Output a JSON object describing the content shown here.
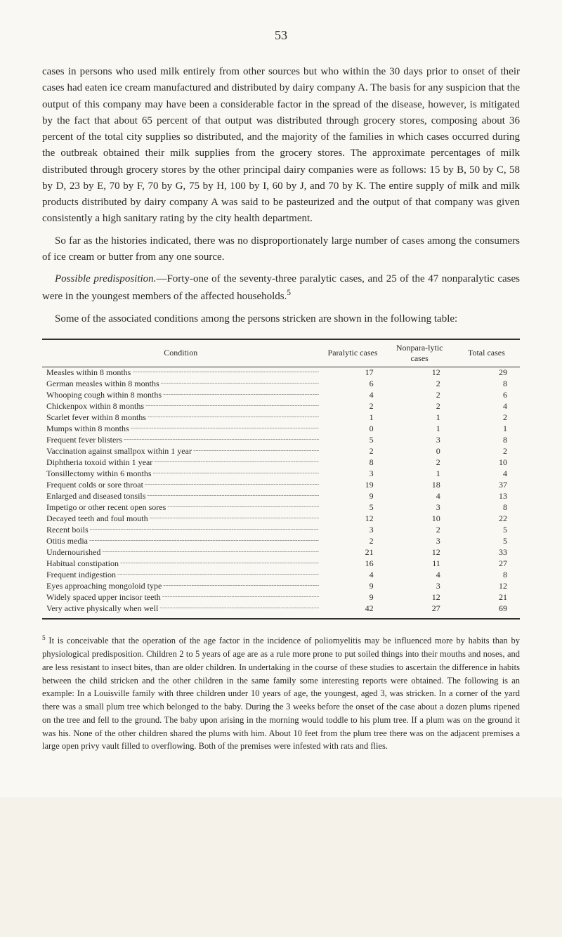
{
  "page_number": "53",
  "paragraphs": {
    "p1": "cases in persons who used milk entirely from other sources but who within the 30 days prior to onset of their cases had eaten ice cream manufactured and distributed by dairy company A. The basis for any suspicion that the output of this company may have been a considerable factor in the spread of the disease, however, is mitigated by the fact that about 65 percent of that output was distributed through grocery stores, composing about 36 percent of the total city supplies so distributed, and the majority of the families in which cases occurred during the outbreak obtained their milk supplies from the grocery stores. The approximate percentages of milk distributed through grocery stores by the other principal dairy companies were as follows: 15 by B, 50 by C, 58 by D, 23 by E, 70 by F, 70 by G, 75 by H, 100 by I, 60 by J, and 70 by K. The entire supply of milk and milk products distributed by dairy company A was said to be pasteurized and the output of that company was given consistently a high sanitary rating by the city health department.",
    "p2": "So far as the histories indicated, there was no disproportionately large number of cases among the consumers of ice cream or butter from any one source.",
    "p3_lead": "Possible predisposition.",
    "p3_rest": "—Forty-one of the seventy-three paralytic cases, and 25 of the 47 nonparalytic cases were in the youngest members of the affected households.",
    "p3_sup": "5",
    "p4": "Some of the associated conditions among the persons stricken are shown in the following table:"
  },
  "table": {
    "headers": {
      "condition": "Condition",
      "paralytic": "Paralytic cases",
      "nonparalytic": "Nonpara-lytic cases",
      "total": "Total cases"
    },
    "rows": [
      {
        "condition": "Measles within 8 months",
        "paralytic": "17",
        "nonparalytic": "12",
        "total": "29"
      },
      {
        "condition": "German measles within 8 months",
        "paralytic": "6",
        "nonparalytic": "2",
        "total": "8"
      },
      {
        "condition": "Whooping cough within 8 months",
        "paralytic": "4",
        "nonparalytic": "2",
        "total": "6"
      },
      {
        "condition": "Chickenpox within 8 months",
        "paralytic": "2",
        "nonparalytic": "2",
        "total": "4"
      },
      {
        "condition": "Scarlet fever within 8 months",
        "paralytic": "1",
        "nonparalytic": "1",
        "total": "2"
      },
      {
        "condition": "Mumps within 8 months",
        "paralytic": "0",
        "nonparalytic": "1",
        "total": "1"
      },
      {
        "condition": "Frequent fever blisters",
        "paralytic": "5",
        "nonparalytic": "3",
        "total": "8"
      },
      {
        "condition": "Vaccination against smallpox within 1 year",
        "paralytic": "2",
        "nonparalytic": "0",
        "total": "2"
      },
      {
        "condition": "Diphtheria toxoid within 1 year",
        "paralytic": "8",
        "nonparalytic": "2",
        "total": "10"
      },
      {
        "condition": "Tonsillectomy within 6 months",
        "paralytic": "3",
        "nonparalytic": "1",
        "total": "4"
      },
      {
        "condition": "Frequent colds or sore throat",
        "paralytic": "19",
        "nonparalytic": "18",
        "total": "37"
      },
      {
        "condition": "Enlarged and diseased tonsils",
        "paralytic": "9",
        "nonparalytic": "4",
        "total": "13"
      },
      {
        "condition": "Impetigo or other recent open sores",
        "paralytic": "5",
        "nonparalytic": "3",
        "total": "8"
      },
      {
        "condition": "Decayed teeth and foul mouth",
        "paralytic": "12",
        "nonparalytic": "10",
        "total": "22"
      },
      {
        "condition": "Recent boils",
        "paralytic": "3",
        "nonparalytic": "2",
        "total": "5"
      },
      {
        "condition": "Otitis media",
        "paralytic": "2",
        "nonparalytic": "3",
        "total": "5"
      },
      {
        "condition": "Undernourished",
        "paralytic": "21",
        "nonparalytic": "12",
        "total": "33"
      },
      {
        "condition": "Habitual constipation",
        "paralytic": "16",
        "nonparalytic": "11",
        "total": "27"
      },
      {
        "condition": "Frequent indigestion",
        "paralytic": "4",
        "nonparalytic": "4",
        "total": "8"
      },
      {
        "condition": "Eyes approaching mongoloid type",
        "paralytic": "9",
        "nonparalytic": "3",
        "total": "12"
      },
      {
        "condition": "Widely spaced upper incisor teeth",
        "paralytic": "9",
        "nonparalytic": "12",
        "total": "21"
      },
      {
        "condition": "Very active physically when well",
        "paralytic": "42",
        "nonparalytic": "27",
        "total": "69"
      }
    ]
  },
  "footnote": {
    "sup": "5",
    "text": " It is conceivable that the operation of the age factor in the incidence of poliomyelitis may be influenced more by habits than by physiological predisposition. Children 2 to 5 years of age are as a rule more prone to put soiled things into their mouths and noses, and are less resistant to insect bites, than are older children. In undertaking in the course of these studies to ascertain the difference in habits between the child stricken and the other children in the same family some interesting reports were obtained. The following is an example: In a Louisville family with three children under 10 years of age, the youngest, aged 3, was stricken. In a corner of the yard there was a small plum tree which belonged to the baby. During the 3 weeks before the onset of the case about a dozen plums ripened on the tree and fell to the ground. The baby upon arising in the morning would toddle to his plum tree. If a plum was on the ground it was his. None of the other children shared the plums with him. About 10 feet from the plum tree there was on the adjacent premises a large open privy vault filled to overflowing. Both of the premises were infested with rats and flies."
  }
}
